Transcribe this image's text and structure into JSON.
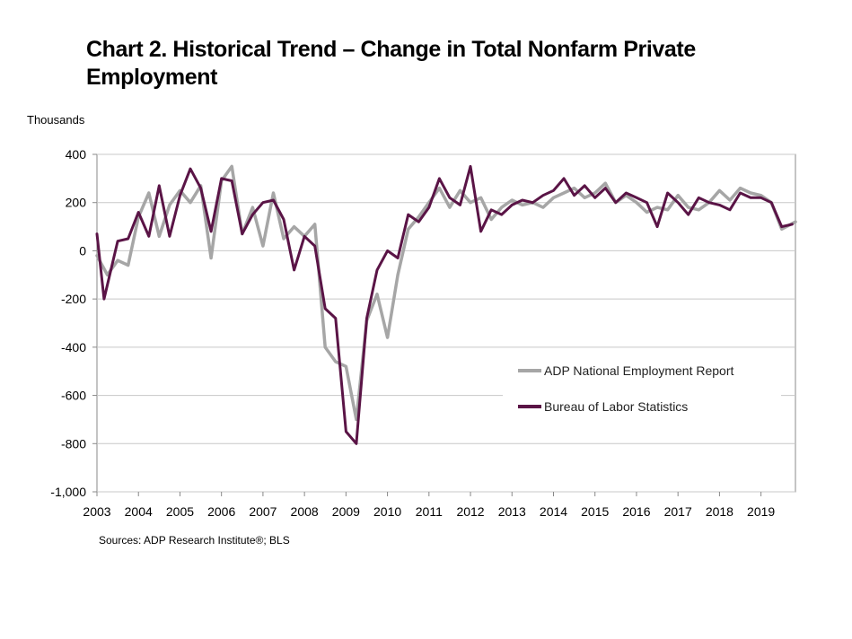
{
  "chart_data": {
    "type": "line",
    "title": "Chart 2. Historical Trend – Change in Total Nonfarm Private Employment",
    "ylabel": "Thousands",
    "xlabel": "",
    "source": "Sources: ADP Research Institute®; BLS",
    "ylim": [
      -1000,
      400
    ],
    "yticks": [
      400,
      200,
      0,
      -200,
      -400,
      -600,
      -800,
      -1000
    ],
    "ytick_labels": [
      "400",
      "200",
      "0",
      "-200",
      "-400",
      "-600",
      "-800",
      "-1,000"
    ],
    "xlim": [
      2003.0,
      2019.83
    ],
    "xticks": [
      2003,
      2004,
      2005,
      2006,
      2007,
      2008,
      2009,
      2010,
      2011,
      2012,
      2013,
      2014,
      2015,
      2016,
      2017,
      2018,
      2019
    ],
    "grid": "horizontal",
    "legend_position": "lower-right",
    "series": [
      {
        "name": "ADP National Employment Report",
        "color": "#a6a6a6",
        "x": [
          2003.0,
          2003.25,
          2003.5,
          2003.75,
          2004.0,
          2004.25,
          2004.5,
          2004.75,
          2005.0,
          2005.25,
          2005.5,
          2005.75,
          2006.0,
          2006.25,
          2006.5,
          2006.75,
          2007.0,
          2007.25,
          2007.5,
          2007.75,
          2008.0,
          2008.25,
          2008.5,
          2008.75,
          2009.0,
          2009.25,
          2009.5,
          2009.75,
          2010.0,
          2010.25,
          2010.5,
          2010.75,
          2011.0,
          2011.25,
          2011.5,
          2011.75,
          2012.0,
          2012.25,
          2012.5,
          2012.75,
          2013.0,
          2013.25,
          2013.5,
          2013.75,
          2014.0,
          2014.25,
          2014.5,
          2014.75,
          2015.0,
          2015.25,
          2015.5,
          2015.75,
          2016.0,
          2016.25,
          2016.5,
          2016.75,
          2017.0,
          2017.25,
          2017.5,
          2017.75,
          2018.0,
          2018.25,
          2018.5,
          2018.75,
          2019.0,
          2019.25,
          2019.5,
          2019.83
        ],
        "values": [
          -20,
          -100,
          -40,
          -60,
          140,
          240,
          60,
          190,
          250,
          200,
          270,
          -30,
          290,
          350,
          70,
          180,
          20,
          240,
          50,
          100,
          60,
          110,
          -400,
          -460,
          -480,
          -700,
          -290,
          -180,
          -360,
          -100,
          90,
          140,
          200,
          260,
          180,
          250,
          200,
          220,
          130,
          180,
          210,
          190,
          200,
          180,
          220,
          240,
          260,
          220,
          240,
          280,
          200,
          230,
          200,
          160,
          180,
          170,
          230,
          180,
          170,
          200,
          250,
          210,
          260,
          240,
          230,
          200,
          90,
          120
        ]
      },
      {
        "name": "Bureau of Labor Statistics",
        "color": "#5a1446",
        "x": [
          2003.0,
          2003.17,
          2003.5,
          2003.75,
          2004.0,
          2004.25,
          2004.5,
          2004.75,
          2005.0,
          2005.25,
          2005.5,
          2005.75,
          2006.0,
          2006.25,
          2006.5,
          2006.75,
          2007.0,
          2007.25,
          2007.5,
          2007.75,
          2008.0,
          2008.25,
          2008.5,
          2008.75,
          2009.0,
          2009.25,
          2009.5,
          2009.75,
          2010.0,
          2010.25,
          2010.5,
          2010.75,
          2011.0,
          2011.25,
          2011.5,
          2011.75,
          2012.0,
          2012.25,
          2012.5,
          2012.75,
          2013.0,
          2013.25,
          2013.5,
          2013.75,
          2014.0,
          2014.25,
          2014.5,
          2014.75,
          2015.0,
          2015.25,
          2015.5,
          2015.75,
          2016.0,
          2016.25,
          2016.5,
          2016.75,
          2017.0,
          2017.25,
          2017.5,
          2017.75,
          2018.0,
          2018.25,
          2018.5,
          2018.75,
          2019.0,
          2019.25,
          2019.5,
          2019.75
        ],
        "values": [
          70,
          -200,
          40,
          50,
          160,
          60,
          270,
          60,
          230,
          340,
          260,
          80,
          300,
          290,
          70,
          150,
          200,
          210,
          130,
          -80,
          60,
          20,
          -240,
          -280,
          -750,
          -800,
          -280,
          -80,
          0,
          -30,
          150,
          120,
          180,
          300,
          220,
          190,
          350,
          80,
          170,
          150,
          190,
          210,
          200,
          230,
          250,
          300,
          230,
          270,
          220,
          260,
          200,
          240,
          220,
          200,
          100,
          240,
          200,
          150,
          220,
          200,
          190,
          170,
          240,
          220,
          220,
          200,
          100,
          110
        ]
      }
    ]
  }
}
